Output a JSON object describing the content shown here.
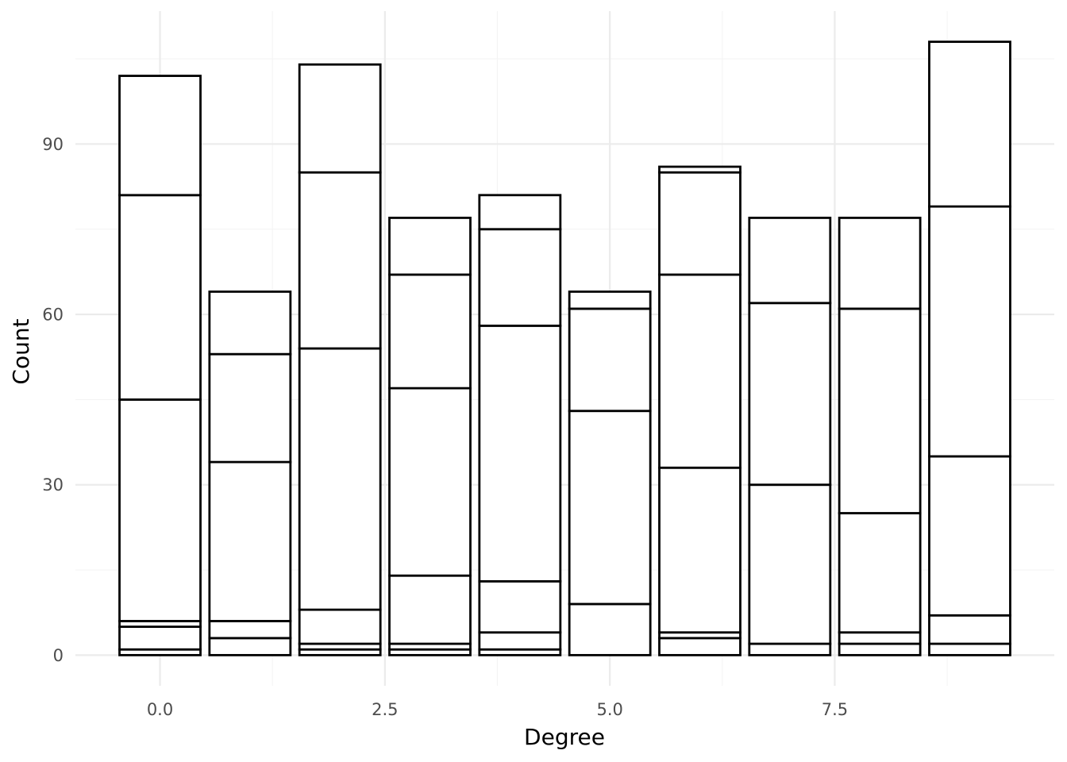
{
  "chart_data": {
    "type": "bar",
    "stacked": true,
    "xlabel": "Degree",
    "ylabel": "Count",
    "x": [
      0,
      1,
      2,
      3,
      4,
      5,
      6,
      7,
      8,
      9
    ],
    "stack_boundaries": [
      [
        0,
        1,
        5,
        6,
        45,
        81,
        102
      ],
      [
        0,
        3,
        6,
        34,
        53,
        64
      ],
      [
        0,
        1,
        2,
        8,
        54,
        85,
        104
      ],
      [
        0,
        1,
        2,
        14,
        47,
        67,
        77
      ],
      [
        0,
        1,
        4,
        13,
        58,
        75,
        81
      ],
      [
        0,
        9,
        43,
        61,
        64
      ],
      [
        0,
        3,
        4,
        33,
        67,
        85,
        86
      ],
      [
        0,
        2,
        30,
        62,
        77
      ],
      [
        0,
        2,
        4,
        25,
        61,
        77
      ],
      [
        0,
        2,
        7,
        35,
        79,
        108
      ]
    ],
    "totals": [
      102,
      64,
      104,
      77,
      81,
      64,
      86,
      77,
      77,
      108
    ],
    "xlim": [
      -0.94,
      9.94
    ],
    "ylim": [
      -5.4,
      113.4
    ],
    "x_ticks": [
      0,
      2.5,
      5,
      7.5
    ],
    "x_tick_labels": [
      "0.0",
      "2.5",
      "5.0",
      "7.5"
    ],
    "y_ticks": [
      0,
      30,
      60,
      90
    ],
    "y_tick_labels": [
      "0",
      "30",
      "60",
      "90"
    ],
    "grid": true,
    "legend": "none",
    "colors": {
      "fill": "#ffffff",
      "outline": "#000000",
      "grid": "#ebebeb",
      "tick_text": "#4d4d4d"
    }
  }
}
